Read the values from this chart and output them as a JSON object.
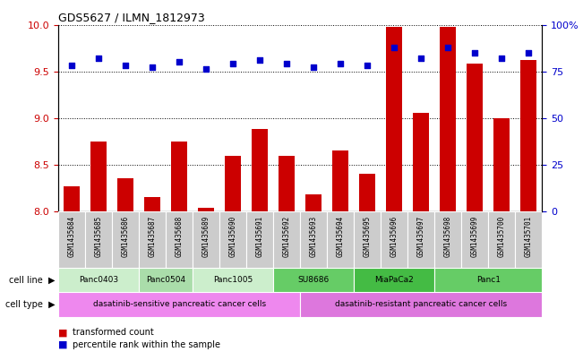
{
  "title": "GDS5627 / ILMN_1812973",
  "samples": [
    "GSM1435684",
    "GSM1435685",
    "GSM1435686",
    "GSM1435687",
    "GSM1435688",
    "GSM1435689",
    "GSM1435690",
    "GSM1435691",
    "GSM1435692",
    "GSM1435693",
    "GSM1435694",
    "GSM1435695",
    "GSM1435696",
    "GSM1435697",
    "GSM1435698",
    "GSM1435699",
    "GSM1435700",
    "GSM1435701"
  ],
  "bar_values": [
    8.27,
    8.75,
    8.35,
    8.15,
    8.75,
    8.04,
    8.59,
    8.88,
    8.59,
    8.18,
    8.65,
    8.4,
    9.98,
    9.05,
    9.98,
    9.58,
    9.0,
    9.62
  ],
  "blue_dots": [
    78,
    82,
    78,
    77,
    80,
    76,
    79,
    81,
    79,
    77,
    79,
    78,
    88,
    82,
    88,
    85,
    82,
    85
  ],
  "bar_color": "#cc0000",
  "dot_color": "#0000cc",
  "ylim_left": [
    8.0,
    10.0
  ],
  "ylim_right": [
    0,
    100
  ],
  "yticks_left": [
    8.0,
    8.5,
    9.0,
    9.5,
    10.0
  ],
  "yticks_right": [
    0,
    25,
    50,
    75,
    100
  ],
  "cell_line_data": [
    {
      "label": "Panc0403",
      "start": 0,
      "end": 3,
      "color": "#cceecc"
    },
    {
      "label": "Panc0504",
      "start": 3,
      "end": 5,
      "color": "#aaddaa"
    },
    {
      "label": "Panc1005",
      "start": 5,
      "end": 8,
      "color": "#cceecc"
    },
    {
      "label": "SU8686",
      "start": 8,
      "end": 11,
      "color": "#66cc66"
    },
    {
      "label": "MiaPaCa2",
      "start": 11,
      "end": 14,
      "color": "#44bb44"
    },
    {
      "label": "Panc1",
      "start": 14,
      "end": 18,
      "color": "#66cc66"
    }
  ],
  "cell_type_data": [
    {
      "label": "dasatinib-sensitive pancreatic cancer cells",
      "start": 0,
      "end": 9,
      "color": "#ee88ee"
    },
    {
      "label": "dasatinib-resistant pancreatic cancer cells",
      "start": 9,
      "end": 18,
      "color": "#dd77dd"
    }
  ],
  "sample_box_color": "#cccccc",
  "background_color": "#ffffff",
  "tick_label_color_left": "#cc0000",
  "tick_label_color_right": "#0000cc"
}
